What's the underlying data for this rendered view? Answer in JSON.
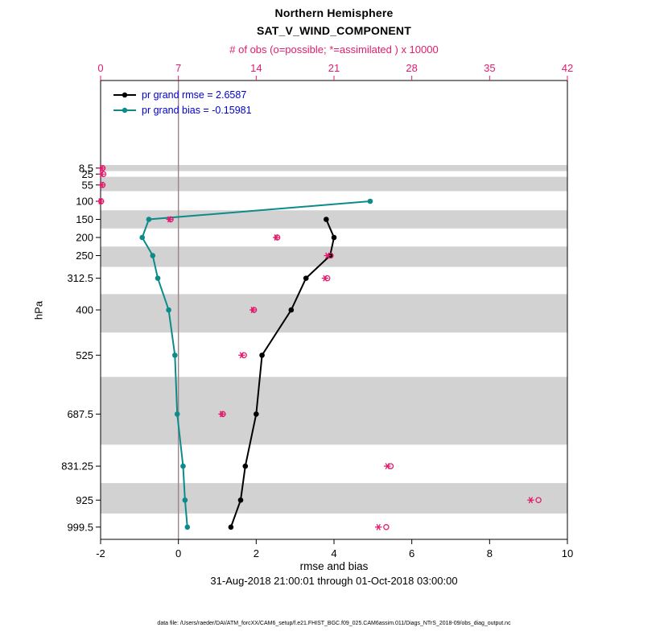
{
  "titles": {
    "line1": "Northern Hemisphere",
    "line2": "SAT_V_WIND_COMPONENT",
    "top_axis_label": "# of obs (o=possible; *=assimilated ) x 10000",
    "xlabel": "rmse and bias",
    "ylabel": "hPa",
    "date_range": "31-Aug-2018 21:00:01 through 01-Oct-2018 03:00:00",
    "footer": "data file: /Users/raeder/DAI/ATM_forcXX/CAM6_setup/f.e21.FHIST_BGC.f09_025.CAM6assim.011/Diags_NTrS_2018-09/obs_diag_output.nc"
  },
  "legend": {
    "rmse_label": "pr grand rmse = 2.6587",
    "bias_label": "pr grand bias = -0.15981"
  },
  "colors": {
    "magenta": "#e31b6d",
    "bias_teal": "#0d8b8b",
    "rmse_black": "#000000",
    "legend_blue": "#0000cc",
    "band_gray": "#d2d2d2",
    "zero_line": "#9a8585"
  },
  "chart_data": {
    "type": "line",
    "title": "Northern Hemisphere SAT_V_WIND_COMPONENT",
    "xlabel": "rmse and bias",
    "ylabel": "hPa",
    "x_axis_bottom": {
      "label": "rmse and bias",
      "range": [
        -2,
        10
      ],
      "ticks": [
        -2,
        0,
        2,
        4,
        6,
        8,
        10
      ]
    },
    "x_axis_top": {
      "label": "# of obs (o=possible; *=assimilated ) x 10000",
      "range": [
        0,
        42
      ],
      "ticks": [
        0,
        7,
        14,
        21,
        28,
        35,
        42
      ]
    },
    "y_axis": {
      "label": "hPa",
      "ticks": [
        8.5,
        25,
        55,
        100,
        150,
        200,
        250,
        312.5,
        400,
        525,
        687.5,
        831.25,
        925,
        999.5
      ]
    },
    "series": [
      {
        "name": "pr grand rmse",
        "grand_stat": 2.6587,
        "color_key": "rmse",
        "levels_hPa": [
          150,
          200,
          250,
          312.5,
          400,
          525,
          687.5,
          831.25,
          925,
          999.5
        ],
        "values": [
          3.8,
          4.0,
          3.9,
          3.28,
          2.9,
          2.15,
          2.0,
          1.72,
          1.6,
          1.35
        ]
      },
      {
        "name": "pr grand bias",
        "grand_stat": -0.15981,
        "color_key": "bias",
        "levels_hPa": [
          100,
          150,
          200,
          250,
          312.5,
          400,
          525,
          687.5,
          831.25,
          925,
          999.5
        ],
        "values": [
          4.93,
          -0.76,
          -0.93,
          -0.66,
          -0.53,
          -0.25,
          -0.09,
          -0.03,
          0.12,
          0.17,
          0.23
        ]
      }
    ],
    "obs_counts_x10000": {
      "levels_hPa": [
        8.5,
        25,
        55,
        100,
        150,
        200,
        250,
        312.5,
        400,
        525,
        687.5,
        831.25,
        925,
        999.5
      ],
      "assimilated_star": [
        0.1,
        0.1,
        0.1,
        0.0,
        6.2,
        15.8,
        20.4,
        20.2,
        13.7,
        12.7,
        10.9,
        25.8,
        38.7,
        25.0
      ],
      "possible_o": [
        0.18,
        0.25,
        0.18,
        0.05,
        6.3,
        15.9,
        20.7,
        20.4,
        13.8,
        12.9,
        11.0,
        26.1,
        39.4,
        25.7
      ]
    },
    "shaded_bands_hPa": [
      [
        0,
        16.75
      ],
      [
        32.5,
        72
      ],
      [
        125,
        175
      ],
      [
        225,
        281.25
      ],
      [
        356.25,
        462.5
      ],
      [
        585,
        772
      ],
      [
        878,
        962
      ]
    ],
    "grid": false,
    "legend_position": "top-left-inside"
  }
}
